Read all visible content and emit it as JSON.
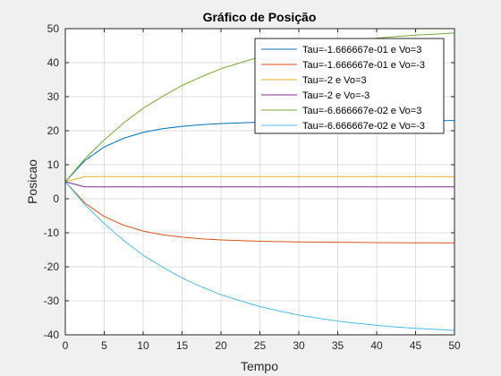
{
  "chart_data": {
    "type": "line",
    "title": "Gráfico de Posição",
    "xlabel": "Tempo",
    "ylabel": "Posicao",
    "xlim": [
      0,
      50
    ],
    "ylim": [
      -40,
      50
    ],
    "xticks": [
      "0",
      "5",
      "10",
      "15",
      "20",
      "25",
      "30",
      "35",
      "40",
      "45",
      "50"
    ],
    "yticks": [
      "-40",
      "-30",
      "-20",
      "-10",
      "0",
      "10",
      "20",
      "30",
      "40",
      "50"
    ],
    "grid": true,
    "legend_position": "top-right",
    "x": [
      0,
      2.5,
      5,
      7.5,
      10,
      12.5,
      15,
      17.5,
      20,
      22.5,
      25,
      27.5,
      30,
      32.5,
      35,
      37.5,
      40,
      42.5,
      45,
      47.5,
      50
    ],
    "series": [
      {
        "name": "Tau=-1.666667e-01 e Vo=3",
        "color": "#0072BD",
        "values": [
          5,
          11.2,
          15.2,
          17.8,
          19.5,
          20.6,
          21.3,
          21.8,
          22.1,
          22.3,
          22.5,
          22.6,
          22.7,
          22.75,
          22.8,
          22.85,
          22.9,
          22.93,
          22.95,
          22.97,
          23
        ]
      },
      {
        "name": "Tau=-1.666667e-01 e Vo=-3",
        "color": "#D95319",
        "values": [
          5,
          -1.2,
          -5.2,
          -7.8,
          -9.5,
          -10.6,
          -11.3,
          -11.8,
          -12.1,
          -12.3,
          -12.5,
          -12.6,
          -12.7,
          -12.75,
          -12.8,
          -12.85,
          -12.9,
          -12.93,
          -12.95,
          -12.97,
          -13
        ]
      },
      {
        "name": "Tau=-2 e Vo=3",
        "color": "#EDB120",
        "values": [
          5,
          6.5,
          6.5,
          6.5,
          6.5,
          6.5,
          6.5,
          6.5,
          6.5,
          6.5,
          6.5,
          6.5,
          6.5,
          6.5,
          6.5,
          6.5,
          6.5,
          6.5,
          6.5,
          6.5,
          6.5
        ]
      },
      {
        "name": "Tau=-2 e Vo=-3",
        "color": "#7E2F8E",
        "values": [
          5,
          3.5,
          3.5,
          3.5,
          3.5,
          3.5,
          3.5,
          3.5,
          3.5,
          3.5,
          3.5,
          3.5,
          3.5,
          3.5,
          3.5,
          3.5,
          3.5,
          3.5,
          3.5,
          3.5,
          3.5
        ]
      },
      {
        "name": "Tau=-6.666667e-02 e Vo=3",
        "color": "#77AC30",
        "values": [
          5,
          11.7,
          17.3,
          22.3,
          26.6,
          30.1,
          33.3,
          35.9,
          38.2,
          40.0,
          41.7,
          43.0,
          44.2,
          45.1,
          46.0,
          46.6,
          47.2,
          47.7,
          48.1,
          48.4,
          48.7
        ]
      },
      {
        "name": "Tau=-6.666667e-02 e Vo=-3",
        "color": "#4DBEEE",
        "values": [
          5,
          -1.7,
          -7.3,
          -12.3,
          -16.6,
          -20.1,
          -23.3,
          -25.9,
          -28.2,
          -30.0,
          -31.7,
          -33.0,
          -34.2,
          -35.1,
          -36.0,
          -36.6,
          -37.2,
          -37.7,
          -38.1,
          -38.4,
          -38.7
        ]
      }
    ]
  }
}
